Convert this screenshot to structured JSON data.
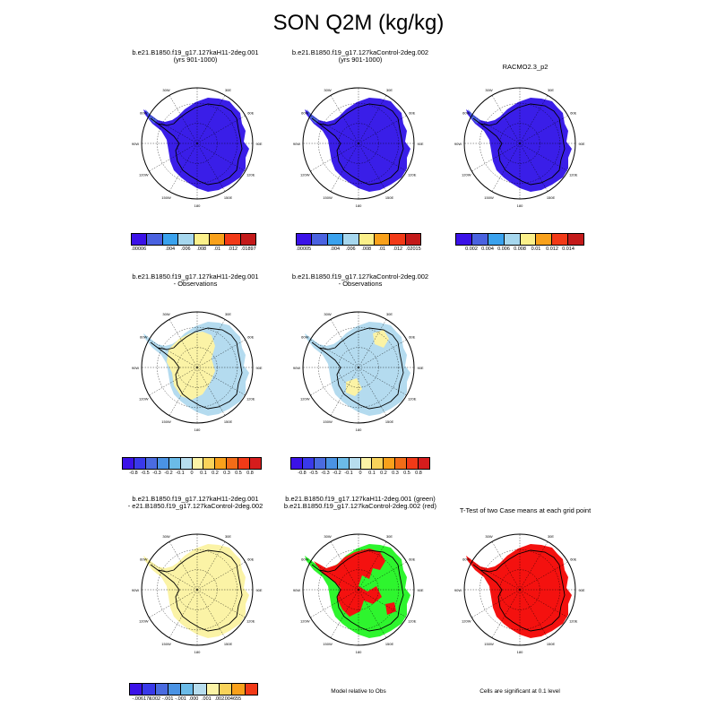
{
  "title": "SON Q2M (kg/kg)",
  "colors": {
    "blue_field": "#3a1ee8",
    "obs_yellow": "#fbf3a6",
    "obs_lightblue": "#b4dbef",
    "green": "#2ef52e",
    "red": "#f4110f",
    "scale": [
      "#3b12e8",
      "#4a62e0",
      "#3aa2ee",
      "#a6d7ee",
      "#fbf08a",
      "#f9a11b",
      "#f23a17",
      "#c41a1a"
    ],
    "diff_scale": [
      "#3b12e8",
      "#3939ea",
      "#4a6be0",
      "#4a93e4",
      "#6bbbe8",
      "#b7ddee",
      "#fbf3a6",
      "#f9d35a",
      "#f9a11b",
      "#f26c17",
      "#f23a17",
      "#d61c1c",
      "#b41515"
    ]
  },
  "lon_labels": [
    "30W",
    "30E",
    "60E",
    "90E",
    "120E",
    "150E",
    "180",
    "150W",
    "120W",
    "90W",
    "60W"
  ],
  "panels": {
    "p1": {
      "title1": "b.e21.B1850.f19_g17.127kaH11-2deg.001",
      "title2": "(yrs 901-1000)"
    },
    "p2": {
      "title1": "b.e21.B1850.f19_g17.127kaControl-2deg.002",
      "title2": "(yrs 901-1000)"
    },
    "p3": {
      "title1": "RACMO2.3_p2",
      "title2": ""
    },
    "p4": {
      "title1": "b.e21.B1850.f19_g17.127kaH11-2deg.001",
      "title2": "- Observations"
    },
    "p5": {
      "title1": "b.e21.B1850.f19_g17.127kaControl-2deg.002",
      "title2": "- Observations"
    },
    "p7": {
      "title1": "b.e21.B1850.f19_g17.127kaH11-2deg.001",
      "title2": "- e21.B1850.f19_g17.127kaControl-2deg.002"
    },
    "p8": {
      "title1": "b.e21.B1850.f19_g17.127kaH11-2deg.001 (green)",
      "title2": "b.e21.B1850.f19_g17.127kaControl-2deg.002 (red)"
    },
    "p9": {
      "title1": "T-Test of two Case means at each grid point",
      "title2": ""
    }
  },
  "colorbars": {
    "cb1": [
      ".00006",
      "",
      ".004",
      ".006",
      ".008",
      ".01",
      ".012",
      ".01897"
    ],
    "cb2": [
      ".00005",
      "",
      ".004",
      ".006",
      ".008",
      ".01",
      ".012",
      ".02015"
    ],
    "cb3": [
      "0.002",
      "0.004",
      "0.006",
      "0.008",
      "0.01",
      "0.012",
      "0.014"
    ],
    "cb4": [
      "-0.8",
      "-0.5",
      "-0.3",
      "-0.2",
      "-0.1",
      "0",
      "0.1",
      "0.2",
      "0.3",
      "0.5",
      "0.8"
    ],
    "cb5": [
      "-0.8",
      "-0.5",
      "-0.3",
      "-0.2",
      "-0.1",
      "0",
      "0.1",
      "0.2",
      "0.3",
      "0.5",
      "0.8"
    ],
    "cb7": [
      "-.006178",
      "-.002",
      "-.001",
      "-.001",
      ".000",
      ".001",
      ".002",
      ".004655"
    ]
  },
  "notes": {
    "model_relative": "Model relative to Obs",
    "significance": "Cells are significant at 0.1 level"
  }
}
